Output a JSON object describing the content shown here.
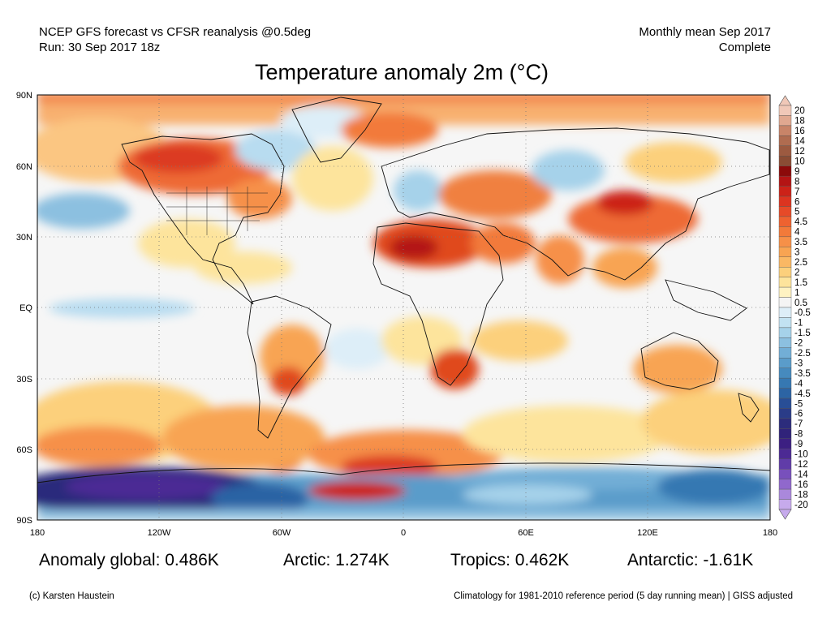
{
  "header": {
    "line1_left": "NCEP GFS forecast vs CFSR reanalysis @0.5deg",
    "line2_left": "Run: 30 Sep 2017 18z",
    "line1_right": "Monthly mean Sep 2017",
    "line2_right": "Complete"
  },
  "title": "Temperature anomaly 2m (°C)",
  "map": {
    "projection": "equirectangular",
    "extent": {
      "lon": [
        -180,
        180
      ],
      "lat": [
        -90,
        90
      ]
    },
    "lat_labels": [
      "90N",
      "60N",
      "30N",
      "EQ",
      "30S",
      "60S",
      "90S"
    ],
    "lon_labels": [
      "180",
      "120W",
      "60W",
      "0",
      "60E",
      "120E",
      "180"
    ],
    "gridlines": "dotted"
  },
  "colorbar": {
    "labels": [
      "20",
      "18",
      "16",
      "14",
      "12",
      "10",
      "9",
      "8",
      "7",
      "6",
      "5",
      "4.5",
      "4",
      "3.5",
      "3",
      "2.5",
      "2",
      "1.5",
      "1",
      "0.5",
      "-0.5",
      "-1",
      "-1.5",
      "-2",
      "-2.5",
      "-3",
      "-3.5",
      "-4",
      "-4.5",
      "-5",
      "-6",
      "-7",
      "-8",
      "-9",
      "-10",
      "-12",
      "-14",
      "-16",
      "-18",
      "-20"
    ],
    "colors": [
      "#f0c8b8",
      "#e0a890",
      "#c88468",
      "#b06c50",
      "#9c5a40",
      "#8a4c34",
      "#8c0a0a",
      "#b41414",
      "#cc2218",
      "#dc3420",
      "#e64a28",
      "#ee6230",
      "#f27a3a",
      "#f69048",
      "#f8a452",
      "#fab864",
      "#fcd07c",
      "#fde49c",
      "#fef2c2",
      "#f4f4f4",
      "#ddeef8",
      "#c2e2f2",
      "#a6d2ea",
      "#8cc0e0",
      "#72aed6",
      "#5a9cca",
      "#468abe",
      "#3678b2",
      "#2c64a4",
      "#284e96",
      "#2a3c88",
      "#2c2c7c",
      "#30237a",
      "#3c1f82",
      "#4c2a94",
      "#603ca8",
      "#7850bc",
      "#9068cc",
      "#aa88dc",
      "#c6aaec"
    ]
  },
  "stats": {
    "global": "Anomaly global: 0.486K",
    "arctic": "Arctic: 1.274K",
    "tropics": "Tropics: 0.462K",
    "antarctic": "Antarctic: -1.61K"
  },
  "footer": {
    "left": "(c) Karsten Haustein",
    "right": "Climatology for 1981-2010 reference period (5 day running mean) | GISS adjusted"
  }
}
